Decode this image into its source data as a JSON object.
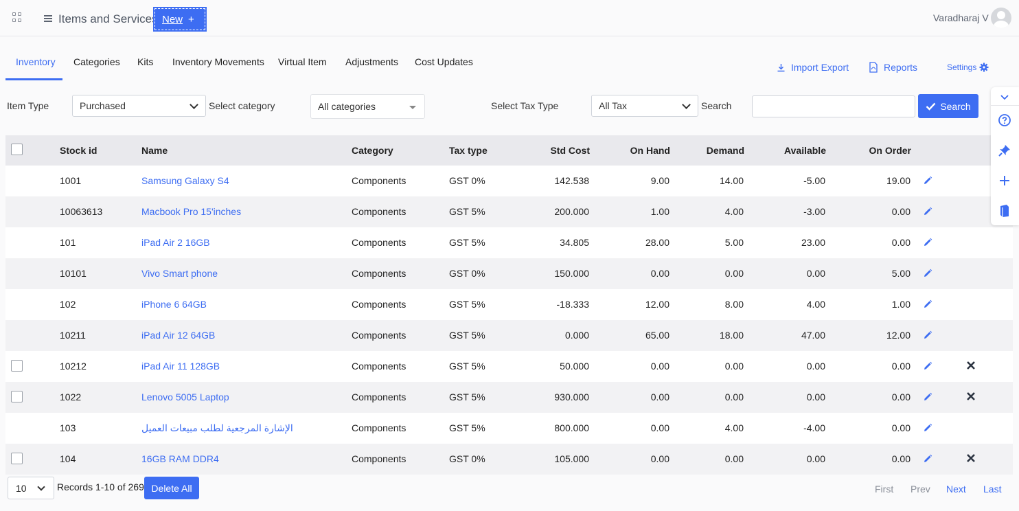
{
  "header": {
    "app_title": "Items and Services",
    "new_button": "New",
    "new_plus": "+",
    "user_name": "Varadharaj V"
  },
  "tabs": [
    {
      "label": "Inventory",
      "active": true
    },
    {
      "label": "Categories"
    },
    {
      "label": "Kits"
    },
    {
      "label": "Inventory Movements"
    },
    {
      "label": "Virtual Item"
    },
    {
      "label": "Adjustments"
    },
    {
      "label": "Cost Updates"
    }
  ],
  "top_links": {
    "import_export": "Import Export",
    "reports": "Reports",
    "settings": "Settings"
  },
  "filters": {
    "item_type_label": "Item Type",
    "item_type_value": "Purchased",
    "category_label": "Select category",
    "category_value": "All categories",
    "tax_type_label": "Select Tax Type",
    "tax_type_value": "All Tax",
    "search_label": "Search",
    "search_value": "",
    "search_button": "Search"
  },
  "table": {
    "columns": [
      "Stock id",
      "Name",
      "Category",
      "Tax type",
      "Std Cost",
      "On Hand",
      "Demand",
      "Available",
      "On Order"
    ],
    "rows": [
      {
        "stock_id": "1001",
        "name": "Samsung Galaxy S4",
        "category": "Components",
        "tax_type": "GST 0%",
        "std_cost": "142.538",
        "on_hand": "9.00",
        "demand": "14.00",
        "available": "-5.00",
        "on_order": "19.00",
        "checkbox": false,
        "delete": false
      },
      {
        "stock_id": "10063613",
        "name": "Macbook Pro 15'inches",
        "category": "Components",
        "tax_type": "GST 5%",
        "std_cost": "200.000",
        "on_hand": "1.00",
        "demand": "4.00",
        "available": "-3.00",
        "on_order": "0.00",
        "checkbox": false,
        "delete": false
      },
      {
        "stock_id": "101",
        "name": "iPad Air 2 16GB",
        "category": "Components",
        "tax_type": "GST 5%",
        "std_cost": "34.805",
        "on_hand": "28.00",
        "demand": "5.00",
        "available": "23.00",
        "on_order": "0.00",
        "checkbox": false,
        "delete": false
      },
      {
        "stock_id": "10101",
        "name": "Vivo Smart phone",
        "category": "Components",
        "tax_type": "GST 0%",
        "std_cost": "150.000",
        "on_hand": "0.00",
        "demand": "0.00",
        "available": "0.00",
        "on_order": "5.00",
        "checkbox": false,
        "delete": false
      },
      {
        "stock_id": "102",
        "name": "iPhone 6 64GB",
        "category": "Components",
        "tax_type": "GST 5%",
        "std_cost": "-18.333",
        "on_hand": "12.00",
        "demand": "8.00",
        "available": "4.00",
        "on_order": "1.00",
        "checkbox": false,
        "delete": false
      },
      {
        "stock_id": "10211",
        "name": "iPad Air 12 64GB",
        "category": "Components",
        "tax_type": "GST 5%",
        "std_cost": "0.000",
        "on_hand": "65.00",
        "demand": "18.00",
        "available": "47.00",
        "on_order": "12.00",
        "checkbox": false,
        "delete": false
      },
      {
        "stock_id": "10212",
        "name": "iPad Air 11 128GB",
        "category": "Components",
        "tax_type": "GST 5%",
        "std_cost": "50.000",
        "on_hand": "0.00",
        "demand": "0.00",
        "available": "0.00",
        "on_order": "0.00",
        "checkbox": true,
        "delete": true
      },
      {
        "stock_id": "1022",
        "name": "Lenovo 5005 Laptop",
        "category": "Components",
        "tax_type": "GST 5%",
        "std_cost": "930.000",
        "on_hand": "0.00",
        "demand": "0.00",
        "available": "0.00",
        "on_order": "0.00",
        "checkbox": true,
        "delete": true
      },
      {
        "stock_id": "103",
        "name": "الإشارة المرجعية لطلب مبيعات العميل",
        "category": "Components",
        "tax_type": "GST 5%",
        "std_cost": "800.000",
        "on_hand": "0.00",
        "demand": "4.00",
        "available": "-4.00",
        "on_order": "0.00",
        "checkbox": false,
        "delete": false
      },
      {
        "stock_id": "104",
        "name": "16GB RAM DDR4",
        "category": "Components",
        "tax_type": "GST 0%",
        "std_cost": "105.000",
        "on_hand": "0.00",
        "demand": "0.00",
        "available": "0.00",
        "on_order": "0.00",
        "checkbox": true,
        "delete": true
      }
    ]
  },
  "footer": {
    "page_size": "10",
    "records_text": "Records 1-10 of 269",
    "delete_all": "Delete All",
    "pager": {
      "first": "First",
      "prev": "Prev",
      "next": "Next",
      "last": "Last"
    }
  },
  "colors": {
    "accent": "#3d6df2",
    "header_bg": "#e9e9ed",
    "row_alt": "#f2f2f4",
    "link": "#3d6df2"
  },
  "icons": [
    "apps-grid-icon",
    "menu-list-icon",
    "avatar-icon",
    "download-icon",
    "pdf-icon",
    "gear-icon",
    "check-icon",
    "chevron-down-icon",
    "pencil-icon",
    "close-icon",
    "help-icon",
    "pin-icon",
    "plus-icon",
    "book-icon"
  ]
}
